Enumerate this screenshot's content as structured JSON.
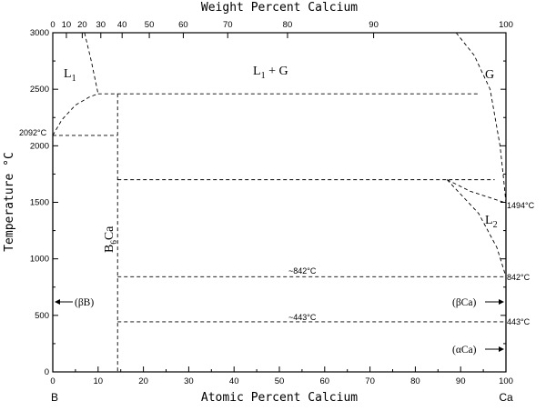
{
  "top_axis": {
    "label": "Weight Percent Calcium",
    "ticks": [
      {
        "text": "0",
        "at": 0
      },
      {
        "text": "10",
        "at": 3.0
      },
      {
        "text": "20",
        "at": 6.5
      },
      {
        "text": "30",
        "at": 10.6
      },
      {
        "text": "40",
        "at": 15.3
      },
      {
        "text": "50",
        "at": 21.3
      },
      {
        "text": "60",
        "at": 28.8
      },
      {
        "text": "70",
        "at": 38.6
      },
      {
        "text": "80",
        "at": 51.8
      },
      {
        "text": "90",
        "at": 70.8
      },
      {
        "text": "100",
        "at": 100
      }
    ]
  },
  "bottom_axis": {
    "label": "Atomic Percent Calcium",
    "ticks": [
      "0",
      "10",
      "20",
      "30",
      "40",
      "50",
      "60",
      "70",
      "80",
      "90",
      "100"
    ],
    "left_element": "B",
    "right_element": "Ca"
  },
  "left_axis": {
    "label": "Temperature °C",
    "ticks": [
      "0",
      "500",
      "1000",
      "1500",
      "2000",
      "2500",
      "3000"
    ]
  },
  "x_range": [
    0,
    100
  ],
  "y_range": [
    0,
    3000
  ],
  "regions": {
    "l1": {
      "text": "L",
      "sub": "1"
    },
    "l1g": {
      "text": "L",
      "sub": "1",
      "rest": " + G"
    },
    "g": "G",
    "l2": {
      "text": "L",
      "sub": "2"
    },
    "b6ca": {
      "text": "B",
      "sub": "6",
      "rest": "Ca"
    }
  },
  "annotations": {
    "t2092": "2092°C",
    "t1494": "1494°C",
    "t842_mid": "~842°C",
    "t842_right": "842°C",
    "t443_mid": "~443°C",
    "t443_right": "443°C"
  },
  "phases": {
    "beta_b": "(βB)",
    "beta_ca": "(βCa)",
    "alpha_ca": "(αCa)"
  },
  "chart_data": {
    "type": "phase-diagram",
    "system": "B–Ca",
    "xlabel": "Atomic Percent Calcium",
    "x2label": "Weight Percent Calcium",
    "ylabel": "Temperature °C",
    "xlim": [
      0,
      100
    ],
    "ylim": [
      0,
      3000
    ],
    "compounds": [
      {
        "name": "B6Ca",
        "at_pct_ca": 14.3
      }
    ],
    "invariant_temperatures_C": [
      2092,
      2460,
      1700,
      1494,
      842,
      443
    ],
    "horizontal_lines": [
      {
        "y": 2460,
        "x": [
          10,
          94
        ]
      },
      {
        "y": 2092,
        "x": [
          0,
          14.3
        ]
      },
      {
        "y": 1700,
        "x": [
          14.3,
          97.5
        ]
      },
      {
        "y": 842,
        "x": [
          14.3,
          100
        ]
      },
      {
        "y": 443,
        "x": [
          14.3,
          100
        ]
      }
    ],
    "curves": [
      {
        "name": "B liquidus",
        "points": [
          [
            0,
            2092
          ],
          [
            2,
            2230
          ],
          [
            5,
            2360
          ],
          [
            8,
            2430
          ],
          [
            10,
            2460
          ]
        ]
      },
      {
        "name": "L1 upper boundary",
        "points": [
          [
            7,
            3000
          ],
          [
            8.5,
            2750
          ],
          [
            10,
            2460
          ]
        ]
      },
      {
        "name": "G boundary",
        "points": [
          [
            89,
            3000
          ],
          [
            93,
            2800
          ],
          [
            96.5,
            2500
          ],
          [
            98.7,
            2000
          ],
          [
            99.5,
            1700
          ],
          [
            100,
            1494
          ]
        ]
      },
      {
        "name": "L2 upper",
        "points": [
          [
            87,
            1700
          ],
          [
            92,
            1600
          ],
          [
            100,
            1494
          ]
        ]
      },
      {
        "name": "Ca liquidus",
        "points": [
          [
            87,
            1700
          ],
          [
            94,
            1400
          ],
          [
            98,
            1100
          ],
          [
            100,
            842
          ]
        ]
      }
    ]
  }
}
